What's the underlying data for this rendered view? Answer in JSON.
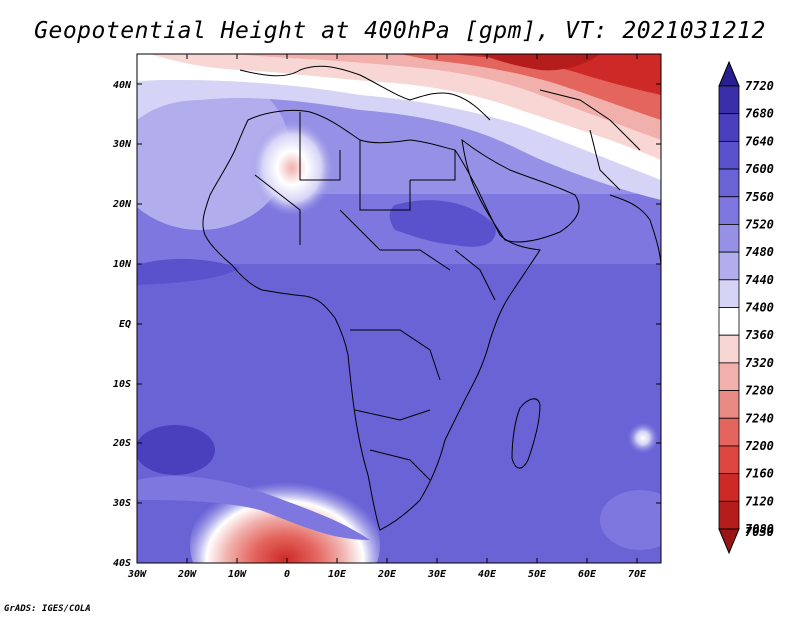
{
  "title": "Geopotential Height at 400hPa [gpm], VT: 2021031212",
  "credit": "GrADS: IGES/COLA",
  "map": {
    "lon_range": [
      -30,
      75
    ],
    "lat_range": [
      -40,
      45
    ],
    "lat_ticks": [
      "40N",
      "30N",
      "20N",
      "10N",
      "EQ",
      "10S",
      "20S",
      "30S",
      "40S"
    ],
    "lon_ticks": [
      "30W",
      "20W",
      "10W",
      "0",
      "10E",
      "20E",
      "30E",
      "40E",
      "50E",
      "60E",
      "70E"
    ]
  },
  "colorbar": {
    "labels": [
      "7720",
      "7680",
      "7640",
      "7600",
      "7560",
      "7520",
      "7480",
      "7440",
      "7400",
      "7360",
      "7320",
      "7280",
      "7240",
      "7200",
      "7160",
      "7120",
      "7080",
      "7030"
    ],
    "colors": [
      "#2a1f8f",
      "#3a2fa8",
      "#4a40bd",
      "#5a52cc",
      "#6a63d6",
      "#7d77df",
      "#9691e6",
      "#b2aeee",
      "#d6d4f6",
      "#ffffff",
      "#f8d6d4",
      "#f1b0ac",
      "#ea8a84",
      "#e4655e",
      "#dc4540",
      "#cd2a27",
      "#b51d1c",
      "#991414"
    ]
  }
}
